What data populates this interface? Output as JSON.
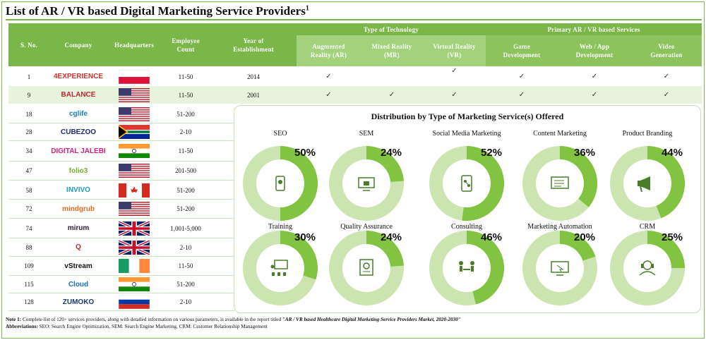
{
  "title": "List of AR / VR based Digital Marketing Service Providers",
  "title_sup": "1",
  "headers": {
    "sno": "S. No.",
    "company": "Company",
    "hq": "Headquarters",
    "emp": "Employee Count",
    "year": "Year of Establishment",
    "tech_group": "Type of Technology",
    "tech": [
      "Augmented Reality (AR)",
      "Mixed Reality (MR)",
      "Virtual Reality (VR)"
    ],
    "svc_group": "Primary AR / VR based Services",
    "svc": [
      "Game Development",
      "Web / App Development",
      "Video Generation"
    ]
  },
  "rows": [
    {
      "sno": "1",
      "company": "4EXPERIENCE",
      "color": "#d0312d",
      "flag": "poland",
      "emp": "11-50",
      "year": "2014",
      "checks": [
        "✓",
        "",
        "✓",
        "✓",
        "✓",
        "✓"
      ]
    },
    {
      "sno": "9",
      "company": "BALANCE",
      "color": "#c0262d",
      "flag": "usa",
      "emp": "11-50",
      "year": "2001",
      "checks": [
        "✓",
        "✓",
        "✓",
        "✓",
        "✓",
        "✓"
      ]
    },
    {
      "sno": "18",
      "company": "cglife",
      "color": "#1a7fc1",
      "flag": "usa",
      "emp": "51-200"
    },
    {
      "sno": "28",
      "company": "CUBEZOO",
      "color": "#1e2a6b",
      "flag": "south-africa",
      "emp": "2-10"
    },
    {
      "sno": "34",
      "company": "DIGITAL JALEBI",
      "color": "#d0207a",
      "flag": "india",
      "emp": "11-50"
    },
    {
      "sno": "47",
      "company": "folio3",
      "color": "#7bab2e",
      "flag": "usa",
      "emp": "201-500"
    },
    {
      "sno": "58",
      "company": "INVIVO",
      "color": "#1b9bbf",
      "flag": "canada",
      "emp": "51-200"
    },
    {
      "sno": "72",
      "company": "mindgrub",
      "color": "#e36b1f",
      "flag": "usa",
      "emp": "51-200"
    },
    {
      "sno": "74",
      "company": "mirum",
      "color": "#2a1f3d",
      "flag": "uk",
      "emp": "1,001-5,000"
    },
    {
      "sno": "88",
      "company": "Q",
      "color": "#c0262d",
      "flag": "uk",
      "emp": "2-10"
    },
    {
      "sno": "109",
      "company": "vStream",
      "color": "#111111",
      "flag": "ireland",
      "emp": "11-50"
    },
    {
      "sno": "115",
      "company": "Cloud",
      "color": "#1a6fb5",
      "flag": "india",
      "emp": "51-200"
    },
    {
      "sno": "128",
      "company": "ZUMOKO",
      "color": "#1d3a70",
      "flag": "russia",
      "emp": "2-10"
    }
  ],
  "chart_data": {
    "type": "pie",
    "title": "Distribution by Type of Marketing Service(s) Offered",
    "categories": [
      "SEO",
      "SEM",
      "Social Media Marketing",
      "Content Marketing",
      "Product Branding",
      "Training",
      "Quality Assurance",
      "Consulting",
      "Marketing Automation",
      "CRM"
    ],
    "values": [
      50,
      24,
      52,
      36,
      44,
      30,
      24,
      46,
      20,
      25
    ],
    "labels": [
      "50%",
      "24%",
      "52%",
      "36%",
      "44%",
      "30%",
      "24%",
      "46%",
      "20%",
      "25%"
    ],
    "icons": [
      "phone-location-icon",
      "monitor-analytics-icon",
      "mobile-network-icon",
      "content-screen-icon",
      "megaphone-icon",
      "presentation-icon",
      "certificate-icon",
      "meeting-icon",
      "screen-cursor-icon",
      "customer-service-icon"
    ],
    "colors": {
      "filled": "#82c341",
      "rest": "#cce5b0",
      "hole": "#ffffff"
    }
  },
  "note": {
    "label": "Note 1:",
    "text": " Complete list of 120+ services providers, along with detailed information on various parameters, is available in the report titled ",
    "report": "\"AR / VR based Healthcare Digital Marketing Service Providers Market, 2020-2030\"",
    "abbr_label": "Abbreviations:",
    "abbr_text": " SEO: Search Engine Optimization, SEM: Search Engine Marketing, CRM: Customer Relationship Management"
  }
}
